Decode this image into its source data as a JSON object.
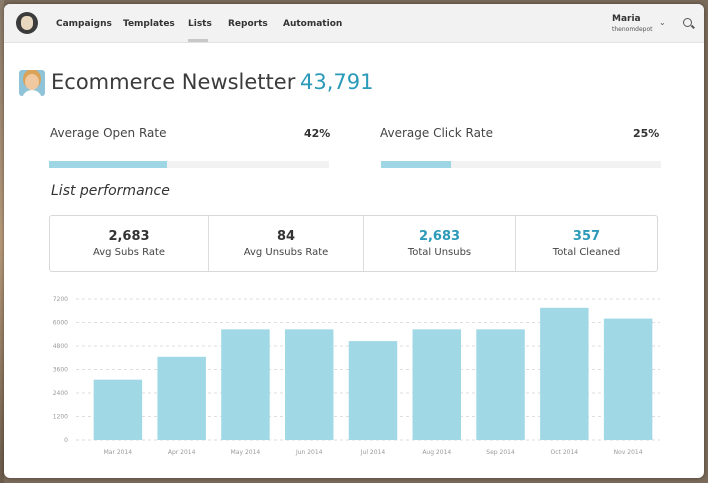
{
  "nav": {
    "items": [
      {
        "label": "Campaigns"
      },
      {
        "label": "Templates"
      },
      {
        "label": "Lists"
      },
      {
        "label": "Reports"
      },
      {
        "label": "Automation"
      }
    ],
    "active": "Lists"
  },
  "user": {
    "name": "Maria",
    "account": "thenomdepot"
  },
  "header": {
    "title": "Ecommerce Newsletter",
    "count": "43,791"
  },
  "rates": {
    "open": {
      "label": "Average Open Rate",
      "value": "42%",
      "fraction": 0.42
    },
    "click": {
      "label": "Average Click Rate",
      "value": "25%",
      "fraction": 0.25
    }
  },
  "performance": {
    "title": "List performance",
    "stats": [
      {
        "value": "2,683",
        "label": "Avg Subs Rate"
      },
      {
        "value": "84",
        "label": "Avg Unsubs Rate"
      },
      {
        "value": "2,683",
        "label": "Total Unsubs"
      },
      {
        "value": "357",
        "label": "Total Cleaned"
      }
    ]
  },
  "colors": {
    "accent": "#2a9ab8",
    "bar": "#a0d8e6"
  },
  "chart_data": {
    "type": "bar",
    "categories": [
      "Mar 2014",
      "Apr 2014",
      "May 2014",
      "Jun 2014",
      "Jul 2014",
      "Aug 2014",
      "Sep 2014",
      "Oct 2014",
      "Nov 2014"
    ],
    "values": [
      3080,
      4250,
      5650,
      5650,
      5050,
      5650,
      5650,
      6750,
      6200
    ],
    "yticks": [
      "0",
      "1200",
      "2400",
      "3600",
      "4800",
      "6000",
      "7200"
    ],
    "ylim": [
      0,
      7200
    ],
    "grid": true
  }
}
